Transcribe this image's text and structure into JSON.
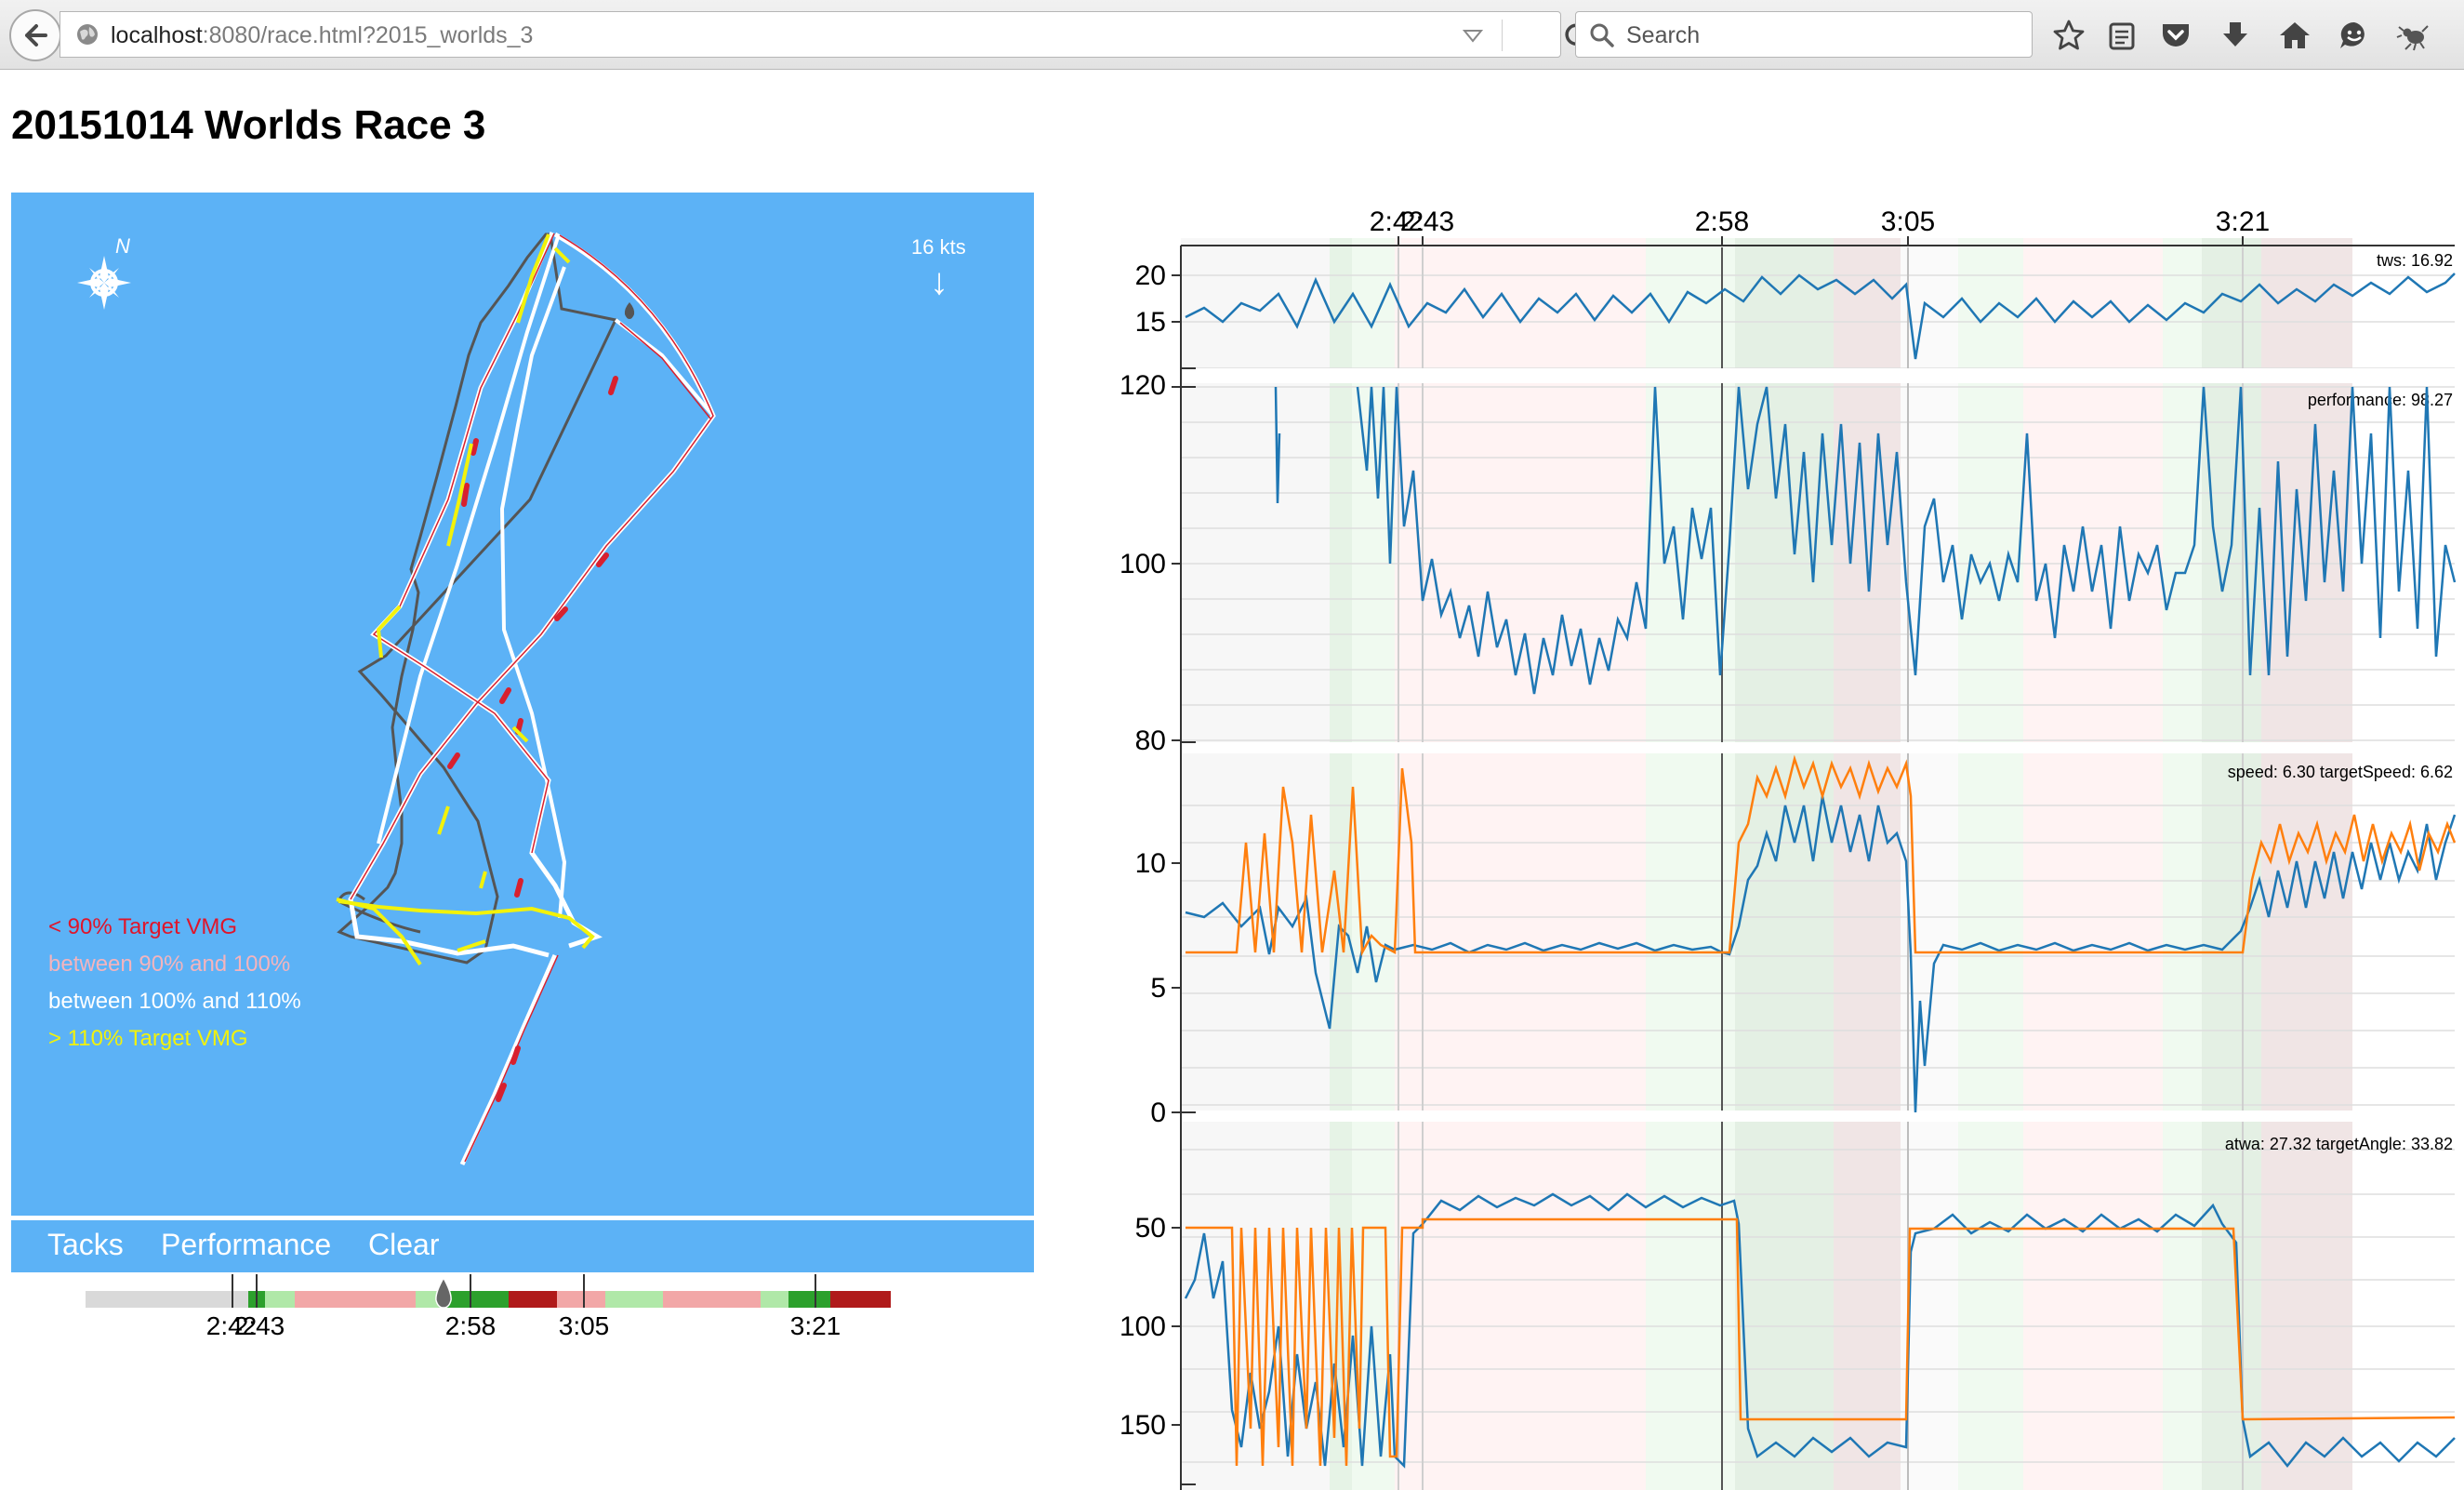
{
  "browser": {
    "url_host": "localhost",
    "url_rest": ":8080/race.html?2015_worlds_3",
    "search_placeholder": "Search"
  },
  "page": {
    "title": "20151014 Worlds Race 3"
  },
  "map": {
    "compass_label": "N",
    "wind_label": "16 kts",
    "wind_arrow": "↓",
    "legend": [
      {
        "label": "< 90% Target VMG",
        "color": "#e0152a"
      },
      {
        "label": "between 90% and 100%",
        "color": "#f4b4bd"
      },
      {
        "label": "between 100% and 110%",
        "color": "#ffffff"
      },
      {
        "label": "> 110% Target VMG",
        "color": "#f2f20a"
      }
    ],
    "colors": {
      "water": "#5cb2f6",
      "track_gray": "#555555",
      "vmg_red": "#d8202e",
      "vmg_yellow": "#f2f20a",
      "vmg_white": "#ffffff"
    }
  },
  "buttons": {
    "tacks": "Tacks",
    "performance": "Performance",
    "clear": "Clear"
  },
  "timeline": {
    "labels": [
      "2:42",
      "2:43",
      "2:58",
      "3:05",
      "3:21"
    ],
    "segment_colors": [
      "#d9d9d9",
      "#b0e8a8",
      "#2ca02c",
      "#f2a7a7",
      "#b01a1a"
    ]
  },
  "charts": {
    "time_labels": [
      "2:42",
      "2:43",
      "2:58",
      "3:05",
      "3:21"
    ],
    "colors": {
      "series_blue": "#1f77b4",
      "series_orange": "#ff7f0e"
    },
    "tws": {
      "readout": "tws: 16.92",
      "ticks": [
        "20",
        "15"
      ]
    },
    "performance": {
      "readout": "performance: 98.27",
      "ticks": [
        "120",
        "100",
        "80"
      ]
    },
    "speed": {
      "readout": "speed: 6.30 targetSpeed: 6.62",
      "ticks": [
        "10",
        "5",
        "0"
      ]
    },
    "atwa": {
      "readout": "atwa: 27.32 targetAngle: 33.82",
      "ticks": [
        "50",
        "100",
        "150"
      ]
    }
  }
}
